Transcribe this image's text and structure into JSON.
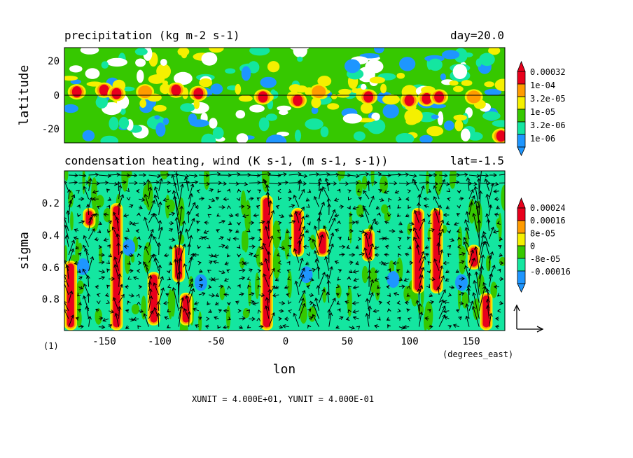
{
  "panels": {
    "top": {
      "title": "precipitation (kg m-2 s-1)",
      "annotation": "day=20.0",
      "ylabel": "latitude",
      "yticks": [
        20,
        0,
        -20
      ],
      "ylim": [
        -28,
        28
      ],
      "colorbar": {
        "labels": [
          "0.00032",
          "1e-04",
          "3.2e-05",
          "1e-05",
          "3.2e-06",
          "1e-06"
        ],
        "colors": [
          "#e8001c",
          "#ff9b00",
          "#f5f000",
          "#36c800",
          "#14e6a0",
          "#1e96ff"
        ]
      }
    },
    "bottom": {
      "title": "condensation heating, wind (K s-1, (m s-1, s-1))",
      "annotation": "lat=-1.5",
      "ylabel": "sigma",
      "yticks": [
        "0.2",
        "0.4",
        "0.6",
        "0.8"
      ],
      "ylim": [
        1.0,
        0.0
      ],
      "colorbar": {
        "labels": [
          "0.00024",
          "0.00016",
          "8e-05",
          "0",
          "-8e-05",
          "-0.00016"
        ],
        "colors": [
          "#e8001c",
          "#ff9b00",
          "#f5f000",
          "#36c800",
          "#14e6a0",
          "#1e96ff"
        ]
      }
    }
  },
  "xaxis": {
    "label": "lon",
    "unit": "(degrees_east)",
    "ticks": [
      "-150",
      "-100",
      "-50",
      "0",
      "50",
      "100",
      "150"
    ],
    "xlim": [
      -180,
      175
    ]
  },
  "frame_label": "(1)",
  "footer": "XUNIT = 4.000E+01, YUNIT = 4.000E-01",
  "chart_data": [
    {
      "type": "heatmap",
      "title": "precipitation (kg m-2 s-1)",
      "subtitle": "day=20.0",
      "xlabel": "lon",
      "ylabel": "latitude",
      "xlim": [
        -180,
        175
      ],
      "ylim": [
        -28,
        28
      ],
      "legend": "right",
      "levels": [
        "1e-06",
        "3.2e-06",
        "1e-05",
        "3.2e-05",
        "1e-04",
        "0.00032"
      ],
      "peaks": [
        {
          "x": -170,
          "y": 2,
          "value": 0.00032
        },
        {
          "x": -148,
          "y": 3,
          "value": 0.00032
        },
        {
          "x": -138,
          "y": 1,
          "value": 0.00032
        },
        {
          "x": -115,
          "y": 2,
          "value": 0.0001
        },
        {
          "x": -90,
          "y": 3,
          "value": 0.00032
        },
        {
          "x": -72,
          "y": 1,
          "value": 0.00032
        },
        {
          "x": -20,
          "y": -1,
          "value": 0.00032
        },
        {
          "x": 8,
          "y": -3,
          "value": 0.00032
        },
        {
          "x": 25,
          "y": 2,
          "value": 0.0001
        },
        {
          "x": 65,
          "y": -1,
          "value": 0.00032
        },
        {
          "x": 98,
          "y": -3,
          "value": 0.00032
        },
        {
          "x": 112,
          "y": -2,
          "value": 0.00032
        },
        {
          "x": 122,
          "y": -1,
          "value": 0.00032
        },
        {
          "x": 150,
          "y": -1,
          "value": 0.0001
        },
        {
          "x": 172,
          "y": -24,
          "value": 0.00032
        }
      ]
    },
    {
      "type": "heatmap",
      "title": "condensation heating, wind (K s-1, (m s-1, s-1))",
      "subtitle": "lat=-1.5",
      "xlabel": "lon",
      "ylabel": "sigma",
      "xlim": [
        -180,
        175
      ],
      "ylim": [
        1.0,
        0.0
      ],
      "legend": "right",
      "levels": [
        "-0.00016",
        "-8e-05",
        "0",
        "8e-05",
        "0.00016",
        "0.00024"
      ],
      "columns": [
        {
          "x": -175,
          "top": 0.58,
          "bottom": 0.98,
          "value": 0.00024
        },
        {
          "x": -160,
          "top": 0.25,
          "bottom": 0.34,
          "value": 0.00024
        },
        {
          "x": -138,
          "top": 0.22,
          "bottom": 0.98,
          "value": 0.00024
        },
        {
          "x": -108,
          "top": 0.65,
          "bottom": 0.95,
          "value": 0.00024
        },
        {
          "x": -88,
          "top": 0.48,
          "bottom": 0.68,
          "value": 0.00024
        },
        {
          "x": -82,
          "top": 0.78,
          "bottom": 0.95,
          "value": 0.00024
        },
        {
          "x": -17,
          "top": 0.17,
          "bottom": 0.98,
          "value": 0.00024
        },
        {
          "x": 8,
          "top": 0.25,
          "bottom": 0.52,
          "value": 0.00024
        },
        {
          "x": 28,
          "top": 0.38,
          "bottom": 0.52,
          "value": 0.00024
        },
        {
          "x": 65,
          "top": 0.38,
          "bottom": 0.55,
          "value": 0.00024
        },
        {
          "x": 105,
          "top": 0.25,
          "bottom": 0.75,
          "value": 0.00024
        },
        {
          "x": 120,
          "top": 0.25,
          "bottom": 0.75,
          "value": 0.00024
        },
        {
          "x": 150,
          "top": 0.48,
          "bottom": 0.6,
          "value": 0.00024
        },
        {
          "x": 160,
          "top": 0.78,
          "bottom": 0.98,
          "value": 0.00024
        }
      ],
      "negatives": [
        {
          "x": -165,
          "y": 0.6,
          "value": -0.00016
        },
        {
          "x": -128,
          "y": 0.48,
          "value": -0.00016
        },
        {
          "x": -70,
          "y": 0.7,
          "value": -0.00016
        },
        {
          "x": 15,
          "y": 0.65,
          "value": -0.00016
        },
        {
          "x": 85,
          "y": 0.68,
          "value": -0.00016
        },
        {
          "x": 140,
          "y": 0.7,
          "value": -0.00016
        }
      ],
      "vector_reference": {
        "xunit": 40.0,
        "yunit": 0.4
      }
    }
  ]
}
